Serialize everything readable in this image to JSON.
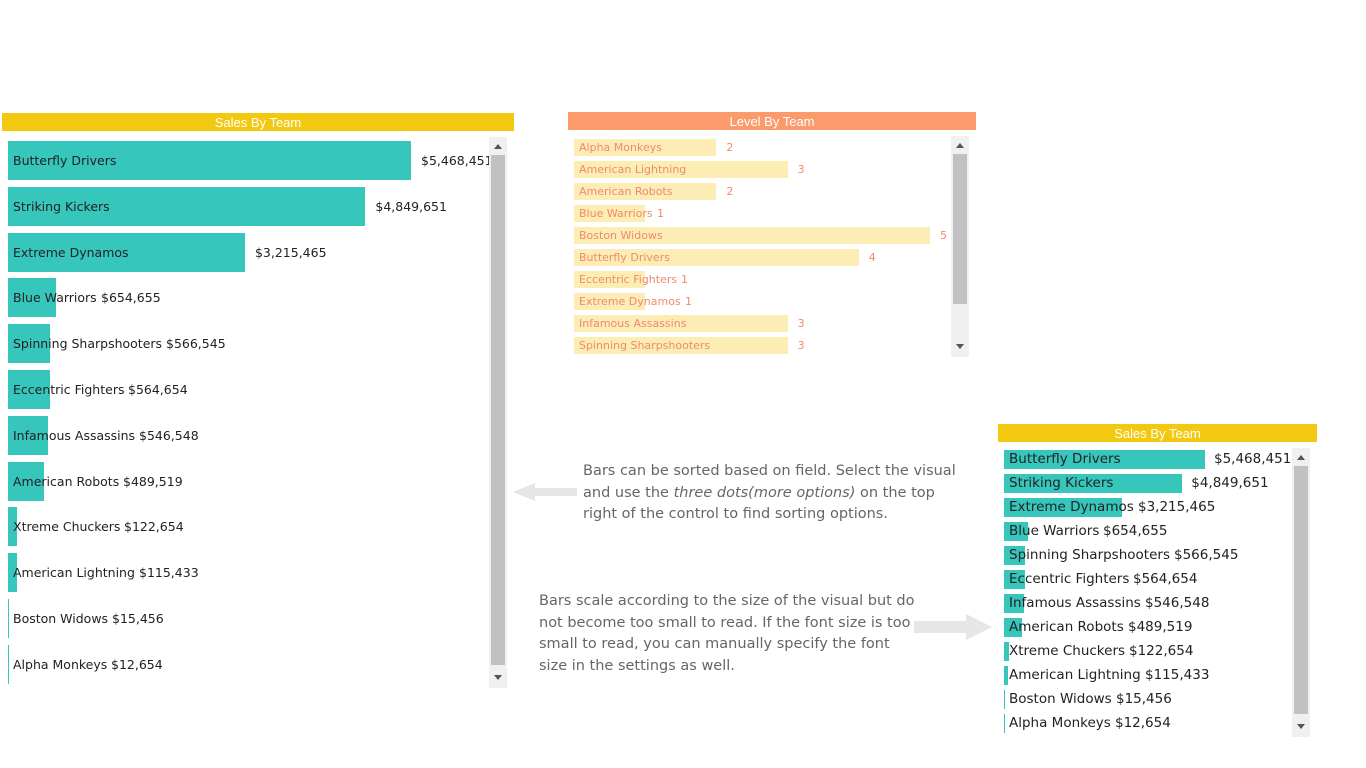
{
  "colors": {
    "teal": "#36c6bc",
    "gold": "#f2c811",
    "orange": "#fb9a6a",
    "pale_yellow": "#fbedb4",
    "level_text": "#f18a6c"
  },
  "chart_data": [
    {
      "type": "bar",
      "orientation": "horizontal",
      "title": "Sales By Team",
      "categories": [
        "Butterfly Drivers",
        "Striking Kickers",
        "Extreme Dynamos",
        "Blue Warriors",
        "Spinning Sharpshooters",
        "Eccentric Fighters",
        "Infamous Assassins",
        "American Robots",
        "Xtreme Chuckers",
        "American Lightning",
        "Boston Widows",
        "Alpha Monkeys"
      ],
      "values": [
        5468451,
        4849651,
        3215465,
        654655,
        566545,
        564654,
        546548,
        489519,
        122654,
        115433,
        15456,
        12654
      ],
      "labels": [
        "$5,468,451",
        "$4,849,651",
        "$3,215,465",
        "$654,655",
        "$566,545",
        "$564,654",
        "$546,548",
        "$489,519",
        "$122,654",
        "$115,433",
        "$15,456",
        "$12,654"
      ]
    },
    {
      "type": "bar",
      "orientation": "horizontal",
      "title": "Level By Team",
      "categories": [
        "Alpha Monkeys",
        "American Lightning",
        "American Robots",
        "Blue Warriors",
        "Boston Widows",
        "Butterfly Drivers",
        "Eccentric Fighters",
        "Extreme Dynamos",
        "Infamous Assassins",
        "Spinning Sharpshooters"
      ],
      "values": [
        2,
        3,
        2,
        1,
        5,
        4,
        1,
        1,
        3,
        3
      ],
      "labels": [
        "2",
        "3",
        "2",
        "1",
        "5",
        "4",
        "1",
        "1",
        "3",
        "3"
      ]
    },
    {
      "type": "bar",
      "orientation": "horizontal",
      "title": "Sales By Team",
      "categories": [
        "Butterfly Drivers",
        "Striking Kickers",
        "Extreme Dynamos",
        "Blue Warriors",
        "Spinning Sharpshooters",
        "Eccentric Fighters",
        "Infamous Assassins",
        "American Robots",
        "Xtreme Chuckers",
        "American Lightning",
        "Boston Widows",
        "Alpha Monkeys"
      ],
      "values": [
        5468451,
        4849651,
        3215465,
        654655,
        566545,
        564654,
        546548,
        489519,
        122654,
        115433,
        15456,
        12654
      ],
      "labels": [
        "$5,468,451",
        "$4,849,651",
        "$3,215,465",
        "$654,655",
        "$566,545",
        "$564,654",
        "$546,548",
        "$489,519",
        "$122,654",
        "$115,433",
        "$15,456",
        "$12,654"
      ]
    }
  ],
  "notes": {
    "sorting_prefix": "Bars can be sorted based on field. Select the visual and use the ",
    "sorting_italic": "three dots(more options)",
    "sorting_suffix": " on the top right of the control to find sorting options.",
    "scaling": "Bars scale according to the size of the visual but do not become too small to read. If the font size is too small to read, you can manually specify the font size in the settings as well."
  }
}
